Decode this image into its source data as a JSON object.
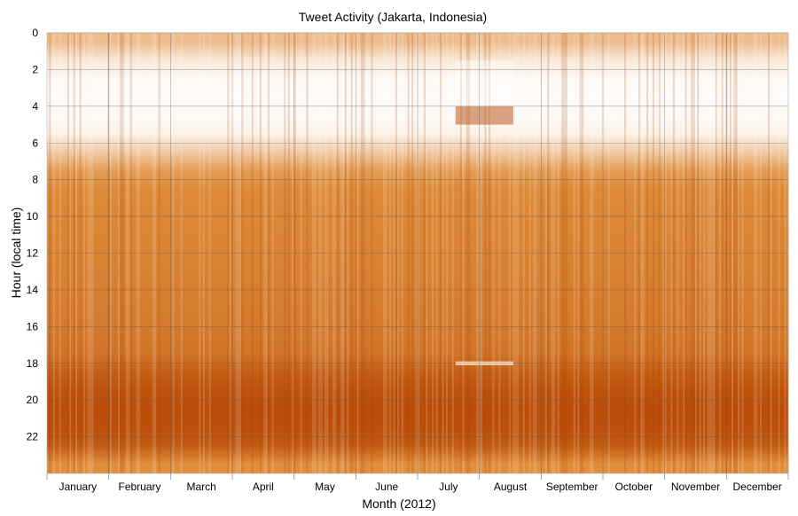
{
  "chart_data": {
    "type": "heatmap",
    "title": "Tweet Activity (Jakarta, Indonesia)",
    "xlabel": "Month (2012)",
    "ylabel": "Hour (local time)",
    "x_categories": [
      "January",
      "February",
      "March",
      "April",
      "May",
      "June",
      "July",
      "August",
      "September",
      "October",
      "November",
      "December"
    ],
    "y_ticks": [
      0,
      2,
      4,
      6,
      8,
      10,
      12,
      14,
      16,
      18,
      20,
      22
    ],
    "ylim": [
      0,
      24
    ],
    "y_inverted": true,
    "grid": true,
    "colormap": {
      "low": "#ffffff",
      "mid": "#e08e3c",
      "high": "#b94a05"
    },
    "hourly_relative_activity": [
      0.35,
      0.12,
      0.03,
      0.02,
      0.03,
      0.07,
      0.28,
      0.52,
      0.62,
      0.64,
      0.65,
      0.66,
      0.67,
      0.68,
      0.7,
      0.71,
      0.73,
      0.76,
      0.88,
      0.95,
      0.98,
      0.97,
      0.9,
      0.6
    ],
    "ramadan_period": {
      "start": "July 20",
      "end": "August 18"
    }
  }
}
